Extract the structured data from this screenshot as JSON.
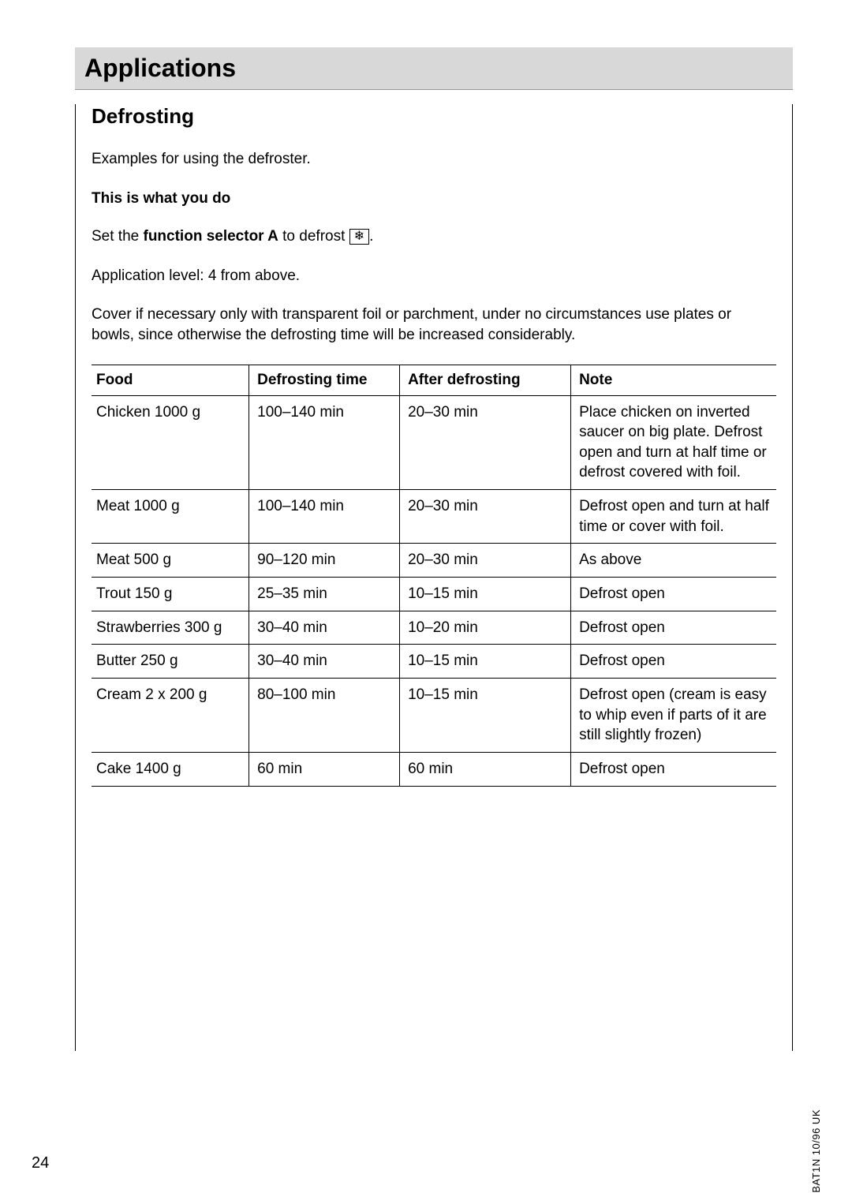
{
  "header": "Applications",
  "section_title": "Defrosting",
  "intro": "Examples for using the defroster.",
  "subhead": "This is what you do",
  "instruction_prefix": "Set the ",
  "instruction_bold": "function selector A",
  "instruction_mid": " to defrost ",
  "instruction_icon": "❄",
  "instruction_end": ".",
  "application_level": "Application level: 4 from above.",
  "cover_note": "Cover if necessary only with transparent foil or parchment, under no circumstances use plates or bowls, since otherwise the defrosting time will be increased considerably.",
  "table": {
    "headers": {
      "food": "Food",
      "defrosting_time": "Defrosting time",
      "after_defrosting": "After defrosting",
      "note": "Note"
    },
    "rows": [
      {
        "food": "Chicken 1000 g",
        "time": "100–140 min",
        "after": "20–30 min",
        "note": "Place chicken on inverted saucer on big plate. Defrost open and turn at half time or defrost covered with foil."
      },
      {
        "food": "Meat 1000 g",
        "time": "100–140 min",
        "after": "20–30 min",
        "note": "Defrost open and turn at half time or cover with foil."
      },
      {
        "food": "Meat 500 g",
        "time": "90–120 min",
        "after": "20–30 min",
        "note": "As above"
      },
      {
        "food": "Trout 150 g",
        "time": "25–35 min",
        "after": "10–15 min",
        "note": "Defrost open"
      },
      {
        "food": "Strawberries 300 g",
        "time": "30–40 min",
        "after": "10–20 min",
        "note": "Defrost open"
      },
      {
        "food": "Butter 250 g",
        "time": "30–40 min",
        "after": "10–15 min",
        "note": "Defrost open"
      },
      {
        "food": "Cream 2 x 200 g",
        "time": "80–100 min",
        "after": "10–15 min",
        "note": "Defrost open (cream is easy to whip even if parts of it are still slightly frozen)"
      },
      {
        "food": "Cake 1400 g",
        "time": "60 min",
        "after": "60 min",
        "note": "Defrost open"
      }
    ]
  },
  "page_number": "24",
  "footer_code": "BAT1N 10/96  UK"
}
